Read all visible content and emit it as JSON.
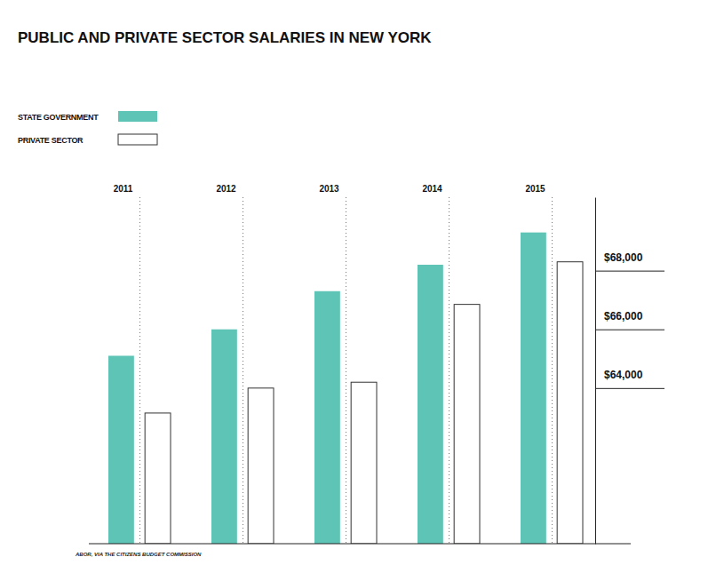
{
  "chart_data": {
    "type": "bar",
    "title": "PUBLIC AND PRIVATE SECTOR SALARIES IN NEW YORK",
    "source": "ABOR, VIA THE CITIZENS BUDGET COMMISSION",
    "categories": [
      "2011",
      "2012",
      "2013",
      "2014",
      "2015"
    ],
    "series": [
      {
        "name": "STATE GOVERNMENT",
        "color": "#5ec4b6",
        "values": [
          65100,
          66000,
          67300,
          68200,
          69300
        ]
      },
      {
        "name": "PRIVATE SECTOR",
        "color": "#ffffff",
        "values": [
          63150,
          64000,
          64200,
          66850,
          68300
        ]
      }
    ],
    "ylim": [
      58700,
      70500
    ],
    "yticks": [
      {
        "value": 64000,
        "label": "$64,000"
      },
      {
        "value": 66000,
        "label": "$66,000"
      },
      {
        "value": 68000,
        "label": "$68,000"
      }
    ],
    "legend": "top-left"
  }
}
